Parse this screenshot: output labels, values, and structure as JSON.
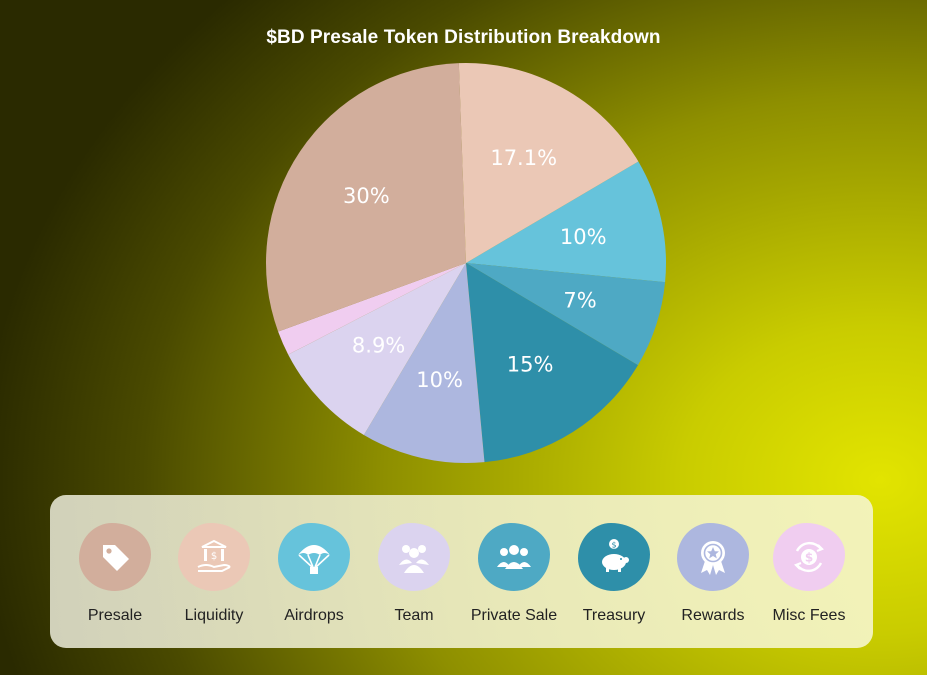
{
  "chart_data": {
    "type": "pie",
    "title": "$BD Presale Token Distribution Breakdown",
    "slices": [
      {
        "name": "Airdrops",
        "value": 10,
        "label": "10%",
        "color": "#66c3db"
      },
      {
        "name": "Private Sale",
        "value": 7,
        "label": "7%",
        "color": "#4ea9c4"
      },
      {
        "name": "Treasury",
        "value": 15,
        "label": "15%",
        "color": "#2e8fa9"
      },
      {
        "name": "Rewards",
        "value": 10,
        "label": "10%",
        "color": "#adb7df"
      },
      {
        "name": "Team",
        "value": 8.9,
        "label": "8.9%",
        "color": "#dbd3ef"
      },
      {
        "name": "Misc Fees",
        "value": 2,
        "label": "",
        "color": "#f0cdf0"
      },
      {
        "name": "Presale",
        "value": 30,
        "label": "30%",
        "color": "#d2ae9c"
      },
      {
        "name": "Liquidity",
        "value": 17.1,
        "label": "17.1%",
        "color": "#ebc8b6"
      }
    ],
    "legend_placement": "bottom"
  },
  "legend": {
    "items": [
      {
        "label": "Presale",
        "icon": "price-tag-icon",
        "color": "#d2ae9c"
      },
      {
        "label": "Liquidity",
        "icon": "bank-hand-icon",
        "color": "#ebc8b6"
      },
      {
        "label": "Airdrops",
        "icon": "parachute-icon",
        "color": "#66c3db"
      },
      {
        "label": "Team",
        "icon": "team-icon",
        "color": "#dbd3ef"
      },
      {
        "label": "Private Sale",
        "icon": "group-icon",
        "color": "#4ea9c4"
      },
      {
        "label": "Treasury",
        "icon": "piggy-bank-icon",
        "color": "#2e8fa9"
      },
      {
        "label": "Rewards",
        "icon": "award-badge-icon",
        "color": "#adb7df"
      },
      {
        "label": "Misc Fees",
        "icon": "dollar-cycle-icon",
        "color": "#f0cdf0"
      }
    ]
  }
}
